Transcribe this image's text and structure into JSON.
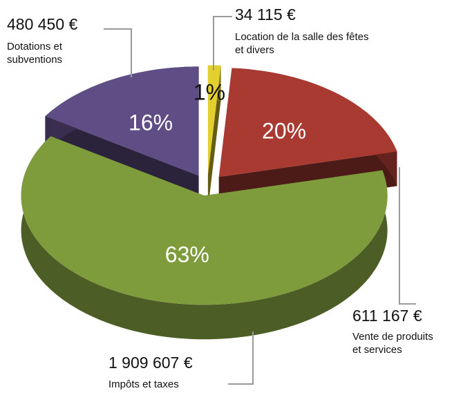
{
  "chart_data": {
    "type": "pie",
    "categories": [
      "Location de la salle des fêtes\net divers",
      "Vente de produits\net services",
      "Impôts et taxes",
      "Dotations et\nsubventions"
    ],
    "values": [
      34115,
      611167,
      1909607,
      480450
    ],
    "value_labels": [
      "34 115 €",
      "611 167 €",
      "1 909 607 €",
      "480 450 €"
    ],
    "percent_labels": [
      "1%",
      "20%",
      "63%",
      "16%"
    ],
    "colors": [
      "#e3cf2e",
      "#a83a32",
      "#7f9c3d",
      "#5f4d85"
    ]
  }
}
